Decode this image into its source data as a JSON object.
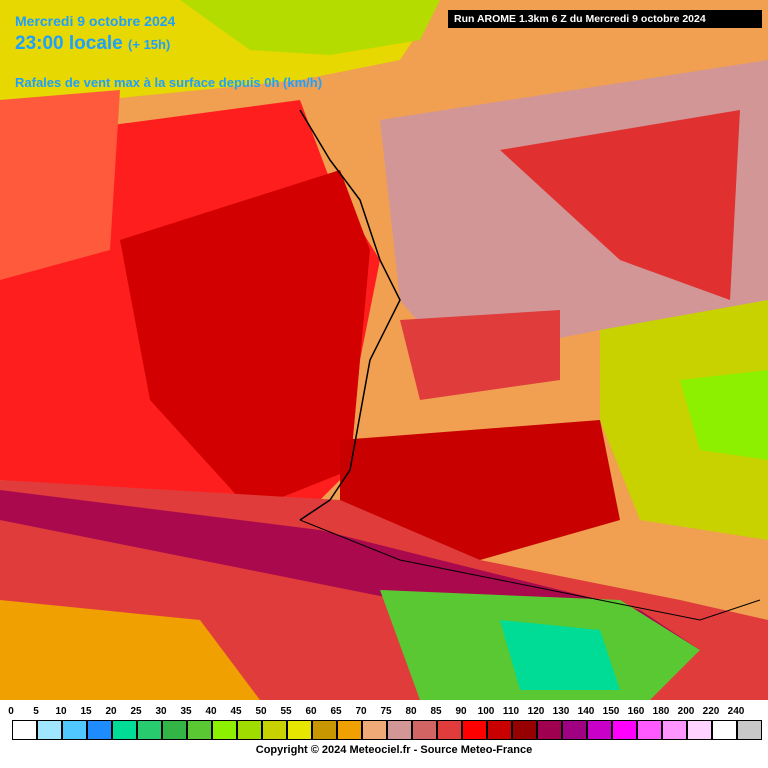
{
  "header": {
    "date": "Mercredi 9 octobre 2024",
    "time": "23:00 locale",
    "offset": "(+ 15h)",
    "subtitle": "Rafales de vent max à la surface depuis 0h (km/h)",
    "run": "Run AROME 1.3km 6 Z du Mercredi 9 octobre 2024"
  },
  "legend": {
    "items": [
      {
        "label": "0",
        "color": "#ffffff"
      },
      {
        "label": "5",
        "color": "#a0e6ff"
      },
      {
        "label": "10",
        "color": "#50c8ff"
      },
      {
        "label": "15",
        "color": "#1e8cff"
      },
      {
        "label": "20",
        "color": "#00dc96"
      },
      {
        "label": "25",
        "color": "#28cc6e"
      },
      {
        "label": "30",
        "color": "#32b446"
      },
      {
        "label": "35",
        "color": "#5ac832"
      },
      {
        "label": "40",
        "color": "#8cf000"
      },
      {
        "label": "45",
        "color": "#a0dc00"
      },
      {
        "label": "50",
        "color": "#c8d200"
      },
      {
        "label": "55",
        "color": "#e6e600"
      },
      {
        "label": "60",
        "color": "#c89600"
      },
      {
        "label": "65",
        "color": "#f0a000"
      },
      {
        "label": "70",
        "color": "#f0aa78"
      },
      {
        "label": "75",
        "color": "#d29696"
      },
      {
        "label": "80",
        "color": "#d26464"
      },
      {
        "label": "85",
        "color": "#e03c3c"
      },
      {
        "label": "90",
        "color": "#ff0000"
      },
      {
        "label": "100",
        "color": "#c80000"
      },
      {
        "label": "110",
        "color": "#960000"
      },
      {
        "label": "120",
        "color": "#a00050"
      },
      {
        "label": "130",
        "color": "#a00082"
      },
      {
        "label": "140",
        "color": "#c800c8"
      },
      {
        "label": "150",
        "color": "#ff00ff"
      },
      {
        "label": "160",
        "color": "#ff5aff"
      },
      {
        "label": "180",
        "color": "#ff96ff"
      },
      {
        "label": "200",
        "color": "#ffd2ff"
      },
      {
        "label": "220",
        "color": "#ffffff"
      },
      {
        "label": "240",
        "color": "#c8c8c8"
      }
    ]
  },
  "footer": {
    "copyright": "Copyright © 2024 Meteociel.fr - Source Meteo-France"
  }
}
